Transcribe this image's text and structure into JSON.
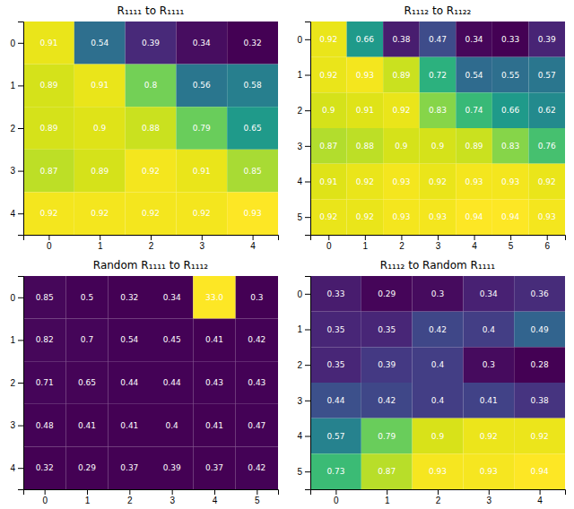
{
  "chart_data": [
    {
      "type": "heatmap",
      "title": "R₁₁₁₁ to R₁₁₁₁",
      "color": "viridis",
      "data_labels": true,
      "values": [
        [
          0.91,
          0.54,
          0.39,
          0.34,
          0.32
        ],
        [
          0.89,
          0.91,
          0.8,
          0.56,
          0.58
        ],
        [
          0.89,
          0.9,
          0.88,
          0.79,
          0.65
        ],
        [
          0.87,
          0.89,
          0.92,
          0.91,
          0.85
        ],
        [
          0.92,
          0.92,
          0.92,
          0.92,
          0.93
        ]
      ],
      "value_labels": [
        [
          "0.91",
          "0.54",
          "0.39",
          "0.34",
          "0.32"
        ],
        [
          "0.89",
          "0.91",
          "0.8",
          "0.56",
          "0.58"
        ],
        [
          "0.89",
          "0.9",
          "0.88",
          "0.79",
          "0.65"
        ],
        [
          "0.87",
          "0.89",
          "0.92",
          "0.91",
          "0.85"
        ],
        [
          "0.92",
          "0.92",
          "0.92",
          "0.92",
          "0.93"
        ]
      ],
      "xlim": [
        -0.5,
        4.5
      ],
      "xticks": [
        0,
        1,
        2,
        3,
        4
      ],
      "ylim": [
        4.5,
        -0.5
      ],
      "yticks": [
        0,
        1,
        2,
        3,
        4
      ]
    },
    {
      "type": "heatmap",
      "title": "R₁₁₁₂ to R₁₁₂₂",
      "color": "viridis",
      "data_labels": true,
      "values": [
        [
          0.92,
          0.66,
          0.38,
          0.47,
          0.34,
          0.33,
          0.39
        ],
        [
          0.92,
          0.93,
          0.89,
          0.72,
          0.54,
          0.55,
          0.57
        ],
        [
          0.9,
          0.91,
          0.92,
          0.83,
          0.74,
          0.66,
          0.62
        ],
        [
          0.87,
          0.88,
          0.9,
          0.9,
          0.89,
          0.83,
          0.76
        ],
        [
          0.91,
          0.92,
          0.93,
          0.92,
          0.93,
          0.93,
          0.92
        ],
        [
          0.92,
          0.92,
          0.93,
          0.93,
          0.94,
          0.94,
          0.93
        ]
      ],
      "value_labels": [
        [
          "0.92",
          "0.66",
          "0.38",
          "0.47",
          "0.34",
          "0.33",
          "0.39"
        ],
        [
          "0.92",
          "0.93",
          "0.89",
          "0.72",
          "0.54",
          "0.55",
          "0.57"
        ],
        [
          "0.9",
          "0.91",
          "0.92",
          "0.83",
          "0.74",
          "0.66",
          "0.62"
        ],
        [
          "0.87",
          "0.88",
          "0.9",
          "0.9",
          "0.89",
          "0.83",
          "0.76"
        ],
        [
          "0.91",
          "0.92",
          "0.93",
          "0.92",
          "0.93",
          "0.93",
          "0.92"
        ],
        [
          "0.92",
          "0.92",
          "0.93",
          "0.93",
          "0.94",
          "0.94",
          "0.93"
        ]
      ],
      "xlim": [
        -0.5,
        6.5
      ],
      "xticks": [
        0,
        1,
        2,
        3,
        4,
        5,
        6
      ],
      "ylim": [
        5.5,
        -0.5
      ],
      "yticks": [
        0,
        1,
        2,
        3,
        4,
        5
      ]
    },
    {
      "type": "heatmap",
      "title": "Random R₁₁₁₁ to R₁₁₁₂",
      "color": "viridis",
      "data_labels": true,
      "values": [
        [
          0.85,
          0.5,
          0.32,
          0.34,
          33.0,
          0.3
        ],
        [
          0.82,
          0.7,
          0.54,
          0.45,
          0.41,
          0.42
        ],
        [
          0.71,
          0.65,
          0.44,
          0.44,
          0.43,
          0.43
        ],
        [
          0.48,
          0.41,
          0.41,
          0.4,
          0.41,
          0.47
        ],
        [
          0.32,
          0.29,
          0.37,
          0.39,
          0.37,
          0.42
        ]
      ],
      "value_labels": [
        [
          "0.85",
          "0.5",
          "0.32",
          "0.34",
          "33.0",
          "0.3"
        ],
        [
          "0.82",
          "0.7",
          "0.54",
          "0.45",
          "0.41",
          "0.42"
        ],
        [
          "0.71",
          "0.65",
          "0.44",
          "0.44",
          "0.43",
          "0.43"
        ],
        [
          "0.48",
          "0.41",
          "0.41",
          "0.4",
          "0.41",
          "0.47"
        ],
        [
          "0.32",
          "0.29",
          "0.37",
          "0.39",
          "0.37",
          "0.42"
        ]
      ],
      "xlim": [
        -0.5,
        5.5
      ],
      "xticks": [
        0,
        1,
        2,
        3,
        4,
        5
      ],
      "ylim": [
        4.5,
        -0.5
      ],
      "yticks": [
        0,
        1,
        2,
        3,
        4
      ]
    },
    {
      "type": "heatmap",
      "title": "R₁₁₁₂ to Random R₁₁₁₁",
      "color": "viridis",
      "data_labels": true,
      "values": [
        [
          0.33,
          0.29,
          0.3,
          0.34,
          0.36
        ],
        [
          0.35,
          0.35,
          0.42,
          0.4,
          0.49
        ],
        [
          0.35,
          0.39,
          0.4,
          0.3,
          0.28
        ],
        [
          0.44,
          0.42,
          0.4,
          0.41,
          0.38
        ],
        [
          0.57,
          0.79,
          0.9,
          0.92,
          0.92
        ],
        [
          0.73,
          0.87,
          0.93,
          0.93,
          0.94
        ]
      ],
      "value_labels": [
        [
          "0.33",
          "0.29",
          "0.3",
          "0.34",
          "0.36"
        ],
        [
          "0.35",
          "0.35",
          "0.42",
          "0.4",
          "0.49"
        ],
        [
          "0.35",
          "0.39",
          "0.4",
          "0.3",
          "0.28"
        ],
        [
          "0.44",
          "0.42",
          "0.4",
          "0.41",
          "0.38"
        ],
        [
          "0.57",
          "0.79",
          "0.9",
          "0.92",
          "0.92"
        ],
        [
          "0.73",
          "0.87",
          "0.93",
          "0.93",
          "0.94"
        ]
      ],
      "xlim": [
        -0.5,
        4.5
      ],
      "xticks": [
        0,
        1,
        2,
        3,
        4
      ],
      "ylim": [
        5.5,
        -0.5
      ],
      "yticks": [
        0,
        1,
        2,
        3,
        4,
        5
      ]
    }
  ]
}
